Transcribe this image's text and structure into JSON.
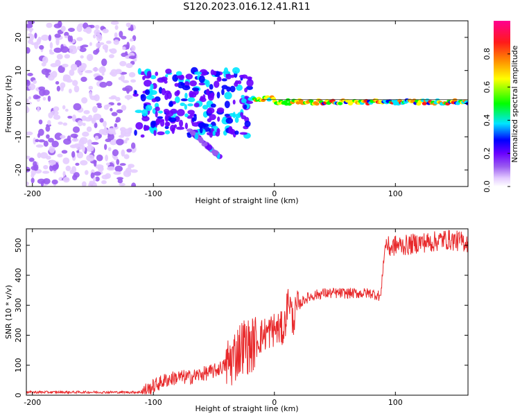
{
  "title": "S120.2023.016.12.41.R11",
  "colors": {
    "snr_line": "#e8292b",
    "colormap": [
      "#ffffff",
      "#e4ccff",
      "#9a5cf0",
      "#6a00ff",
      "#0000ff",
      "#00e5ff",
      "#00ff00",
      "#ffff00",
      "#ff8c00",
      "#ff1a1a",
      "#ff0090"
    ]
  },
  "chart_data": [
    {
      "type": "heatmap",
      "xlabel": "Height of straight line (km)",
      "ylabel": "Frequency (Hz)",
      "xlim": [
        -205,
        160
      ],
      "ylim": [
        -25,
        25
      ],
      "xticks": [
        -200,
        -100,
        0,
        100
      ],
      "yticks": [
        -20,
        -10,
        0,
        10,
        20
      ],
      "colorbar": {
        "label": "Normalized spectral amplitude",
        "range": [
          0,
          1
        ],
        "ticks": [
          0.0,
          0.2,
          0.4,
          0.6,
          0.8
        ]
      },
      "regions": [
        {
          "x": [
            -205,
            -115
          ],
          "y": [
            -25,
            25
          ],
          "amplitude": 0.1,
          "description": "noise"
        },
        {
          "x": [
            -115,
            -20
          ],
          "y": [
            -10,
            10
          ],
          "amplitude": 0.25,
          "description": "scattered signal"
        },
        {
          "x": [
            -70,
            -45
          ],
          "y": [
            -17,
            -8
          ],
          "amplitude": 0.15,
          "description": "secondary branch"
        },
        {
          "x": [
            -20,
            160
          ],
          "y": [
            -1,
            2
          ],
          "amplitude": 0.9,
          "description": "main line near 0 Hz"
        }
      ]
    },
    {
      "type": "line",
      "xlabel": "Height of straight line (km)",
      "ylabel": "SNR (10 * v/v)",
      "xlim": [
        -205,
        160
      ],
      "ylim": [
        0,
        555
      ],
      "xticks": [
        -200,
        -100,
        0,
        100
      ],
      "yticks": [
        0,
        100,
        200,
        300,
        400,
        500
      ],
      "series": [
        {
          "x": [
            -205,
            -150,
            -110,
            -100,
            -90,
            -80,
            -70,
            -60,
            -50,
            -40,
            -35,
            -30,
            -25,
            -20,
            -15,
            -10,
            -5,
            0,
            5,
            8,
            10,
            12,
            15,
            20,
            25,
            30,
            40,
            50,
            60,
            70,
            80,
            88,
            90,
            92,
            95,
            100,
            110,
            120,
            130,
            140,
            150,
            160
          ],
          "y": [
            10,
            10,
            10,
            30,
            50,
            60,
            60,
            70,
            80,
            100,
            120,
            150,
            170,
            160,
            180,
            200,
            210,
            220,
            220,
            220,
            280,
            330,
            250,
            300,
            320,
            330,
            340,
            340,
            340,
            340,
            340,
            330,
            440,
            510,
            490,
            500,
            500,
            510,
            510,
            520,
            515,
            510
          ]
        }
      ]
    }
  ]
}
